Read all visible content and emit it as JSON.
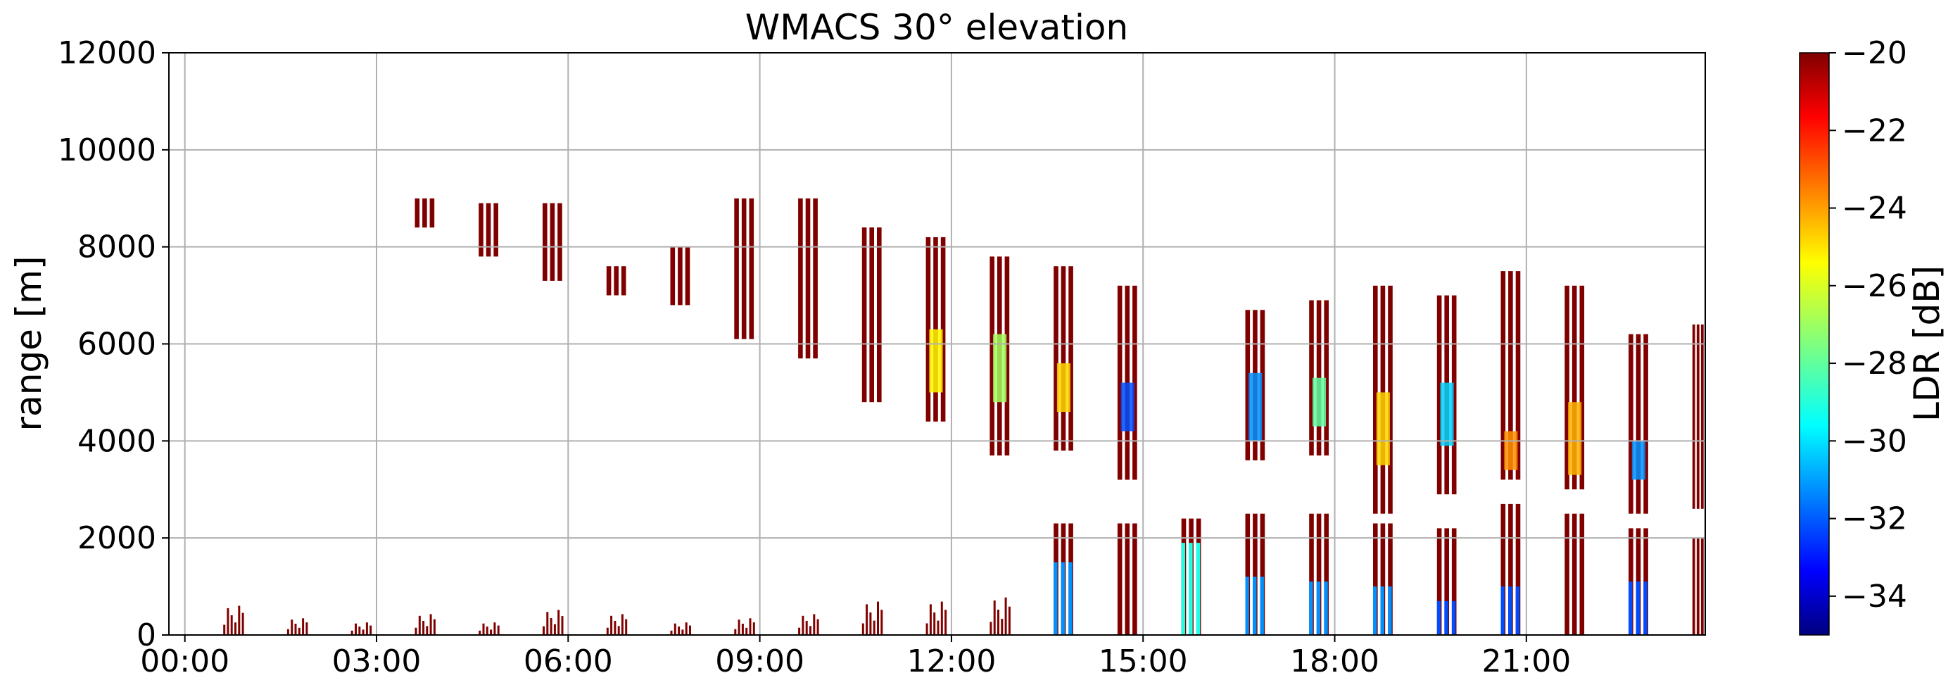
{
  "chart_data": {
    "type": "heatmap",
    "title": "WMACS 30° elevation",
    "xlabel": "",
    "ylabel": "range [m]",
    "x_unit": "hours",
    "xlim": [
      -0.25,
      23.8
    ],
    "ylim": [
      0,
      12000
    ],
    "x_ticks": [
      0,
      3,
      6,
      9,
      12,
      15,
      18,
      21
    ],
    "x_tick_labels": [
      "00:00",
      "03:00",
      "06:00",
      "09:00",
      "12:00",
      "15:00",
      "18:00",
      "21:00"
    ],
    "y_ticks": [
      0,
      2000,
      4000,
      6000,
      8000,
      10000,
      12000
    ],
    "y_tick_labels": [
      "0",
      "2000",
      "4000",
      "6000",
      "8000",
      "10000",
      "12000"
    ],
    "grid": true,
    "colorbar": {
      "label": "LDR [dB]",
      "range": [
        -35,
        -20
      ],
      "colormap": "jet",
      "ticks": [
        -20,
        -22,
        -24,
        -26,
        -28,
        -30,
        -32,
        -34
      ],
      "tick_labels": [
        "−20",
        "−22",
        "−24",
        "−26",
        "−28",
        "−30",
        "−32",
        "−34"
      ]
    },
    "scans_upper": [
      {
        "start": 3.6,
        "end": 3.95,
        "base": 8400,
        "top": 9000,
        "ldr": -20
      },
      {
        "start": 4.6,
        "end": 4.95,
        "base": 7800,
        "top": 8900,
        "ldr": -20
      },
      {
        "start": 5.6,
        "end": 5.95,
        "base": 7300,
        "top": 8900,
        "ldr": -20
      },
      {
        "start": 6.6,
        "end": 6.95,
        "base": 7000,
        "top": 7600,
        "ldr": -20
      },
      {
        "start": 7.6,
        "end": 7.95,
        "base": 6800,
        "top": 8000,
        "ldr": -20
      },
      {
        "start": 8.6,
        "end": 8.95,
        "base": 6100,
        "top": 9000,
        "ldr": -20
      },
      {
        "start": 9.6,
        "end": 9.95,
        "base": 5700,
        "top": 9000,
        "ldr": -20
      },
      {
        "start": 10.6,
        "end": 10.95,
        "base": 4800,
        "top": 8400,
        "ldr": -20
      },
      {
        "start": 11.6,
        "end": 11.95,
        "base": 4400,
        "top": 8200,
        "ldr": -20,
        "core": {
          "base": 5000,
          "top": 6300,
          "ldr": -25.5
        }
      },
      {
        "start": 12.6,
        "end": 12.95,
        "base": 3700,
        "top": 7800,
        "ldr": -20,
        "core": {
          "base": 4800,
          "top": 6200,
          "ldr": -27
        }
      },
      {
        "start": 13.6,
        "end": 13.95,
        "base": 3800,
        "top": 7600,
        "ldr": -20,
        "core": {
          "base": 4600,
          "top": 5600,
          "ldr": -25
        }
      },
      {
        "start": 14.6,
        "end": 14.95,
        "base": 3200,
        "top": 7200,
        "ldr": -20,
        "core": {
          "base": 4200,
          "top": 5200,
          "ldr": -32
        }
      },
      {
        "start": 16.6,
        "end": 16.95,
        "base": 3600,
        "top": 6700,
        "ldr": -20,
        "core": {
          "base": 4000,
          "top": 5400,
          "ldr": -31
        }
      },
      {
        "start": 17.6,
        "end": 17.95,
        "base": 3700,
        "top": 6900,
        "ldr": -20,
        "core": {
          "base": 4300,
          "top": 5300,
          "ldr": -28
        }
      },
      {
        "start": 18.6,
        "end": 18.95,
        "base": 2500,
        "top": 7200,
        "ldr": -20,
        "core": {
          "base": 3500,
          "top": 5000,
          "ldr": -25
        }
      },
      {
        "start": 19.6,
        "end": 19.95,
        "base": 2900,
        "top": 7000,
        "ldr": -20,
        "core": {
          "base": 3900,
          "top": 5200,
          "ldr": -30
        }
      },
      {
        "start": 20.6,
        "end": 20.95,
        "base": 3200,
        "top": 7500,
        "ldr": -20,
        "core": {
          "base": 3400,
          "top": 4200,
          "ldr": -24
        }
      },
      {
        "start": 21.6,
        "end": 21.95,
        "base": 3000,
        "top": 7200,
        "ldr": -20,
        "core": {
          "base": 3300,
          "top": 4800,
          "ldr": -24.5
        }
      },
      {
        "start": 22.6,
        "end": 22.95,
        "base": 2500,
        "top": 6200,
        "ldr": -20,
        "core": {
          "base": 3200,
          "top": 4000,
          "ldr": -31
        }
      },
      {
        "start": 23.6,
        "end": 23.8,
        "base": 2600,
        "top": 6400,
        "ldr": -20
      }
    ],
    "scans_lower": [
      {
        "start": 13.6,
        "end": 13.95,
        "top": 2300,
        "ldr": -20,
        "low": {
          "top": 1500,
          "ldr": -31
        }
      },
      {
        "start": 14.6,
        "end": 14.95,
        "top": 2300,
        "ldr": -20
      },
      {
        "start": 15.6,
        "end": 15.95,
        "top": 2400,
        "ldr": -20,
        "low": {
          "top": 1900,
          "ldr": -29
        }
      },
      {
        "start": 16.6,
        "end": 16.95,
        "top": 2500,
        "ldr": -20,
        "low": {
          "top": 1200,
          "ldr": -31
        }
      },
      {
        "start": 17.6,
        "end": 17.95,
        "top": 2500,
        "ldr": -20,
        "low": {
          "top": 1100,
          "ldr": -31
        }
      },
      {
        "start": 18.6,
        "end": 18.95,
        "top": 2300,
        "ldr": -20,
        "low": {
          "top": 1000,
          "ldr": -31
        }
      },
      {
        "start": 19.6,
        "end": 19.95,
        "top": 2200,
        "ldr": -20,
        "low": {
          "top": 700,
          "ldr": -32
        }
      },
      {
        "start": 20.6,
        "end": 20.95,
        "top": 2700,
        "ldr": -20,
        "low": {
          "top": 1000,
          "ldr": -32
        }
      },
      {
        "start": 21.6,
        "end": 21.95,
        "top": 2500,
        "ldr": -20
      },
      {
        "start": 22.6,
        "end": 22.95,
        "top": 2200,
        "ldr": -20,
        "low": {
          "top": 1100,
          "ldr": -32
        }
      },
      {
        "start": 23.6,
        "end": 23.8,
        "top": 2000,
        "ldr": -20
      }
    ],
    "surface_clutter": [
      {
        "start": 0.6,
        "end": 0.95,
        "top": 700,
        "ldr": -20
      },
      {
        "start": 1.6,
        "end": 1.95,
        "top": 400,
        "ldr": -20
      },
      {
        "start": 2.6,
        "end": 2.95,
        "top": 300,
        "ldr": -20
      },
      {
        "start": 3.6,
        "end": 3.95,
        "top": 500,
        "ldr": -20
      },
      {
        "start": 4.6,
        "end": 4.95,
        "top": 300,
        "ldr": -20
      },
      {
        "start": 5.6,
        "end": 5.95,
        "top": 600,
        "ldr": -20
      },
      {
        "start": 6.6,
        "end": 6.95,
        "top": 500,
        "ldr": -20
      },
      {
        "start": 7.6,
        "end": 7.95,
        "top": 300,
        "ldr": -20
      },
      {
        "start": 8.6,
        "end": 8.95,
        "top": 400,
        "ldr": -20
      },
      {
        "start": 9.6,
        "end": 9.95,
        "top": 500,
        "ldr": -20
      },
      {
        "start": 10.6,
        "end": 10.95,
        "top": 800,
        "ldr": -20
      },
      {
        "start": 11.6,
        "end": 11.95,
        "top": 800,
        "ldr": -20
      },
      {
        "start": 12.6,
        "end": 12.95,
        "top": 900,
        "ldr": -20
      }
    ]
  }
}
